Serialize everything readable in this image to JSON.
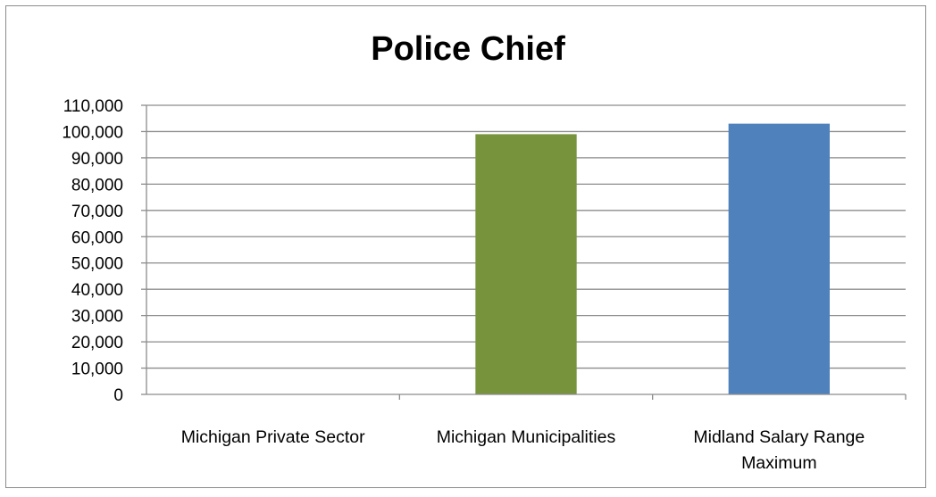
{
  "chart_data": {
    "type": "bar",
    "title": "Police Chief",
    "categories": [
      "Michigan Private Sector",
      "Michigan Municipalities",
      "Midland Salary Range Maximum"
    ],
    "category_lines": [
      [
        "Michigan Private Sector"
      ],
      [
        "Michigan Municipalities"
      ],
      [
        "Midland Salary Range",
        "Maximum"
      ]
    ],
    "values": [
      null,
      99000,
      103000
    ],
    "bar_colors": [
      "#4f81bd",
      "#77933c",
      "#4f81bd"
    ],
    "ylim": [
      0,
      110000
    ],
    "yticks": [
      0,
      10000,
      20000,
      30000,
      40000,
      50000,
      60000,
      70000,
      80000,
      90000,
      100000,
      110000
    ],
    "ytick_labels": [
      "0",
      "10,000",
      "20,000",
      "30,000",
      "40,000",
      "50,000",
      "60,000",
      "70,000",
      "80,000",
      "90,000",
      "100,000",
      "110,000"
    ],
    "xlabel": "",
    "ylabel": "",
    "grid": true,
    "legend": "none"
  }
}
